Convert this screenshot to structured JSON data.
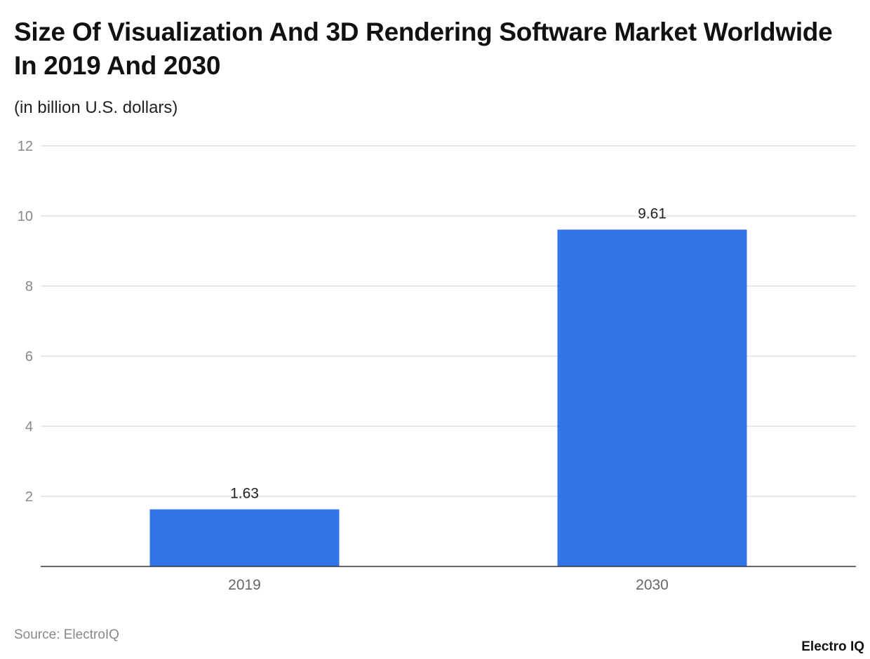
{
  "title": "Size Of Visualization And 3D Rendering Software Market Worldwide In 2019 And 2030",
  "subtitle": "(in billion U.S. dollars)",
  "source": "Source: ElectroIQ",
  "logo": "Electro IQ",
  "chart_data": {
    "type": "bar",
    "categories": [
      "2019",
      "2030"
    ],
    "values": [
      1.63,
      9.61
    ],
    "data_labels": [
      "1.63",
      "9.61"
    ],
    "ylim": [
      0,
      12
    ],
    "yticks": [
      2,
      4,
      6,
      8,
      10,
      12
    ],
    "grid": true,
    "bar_color": "#3375e8"
  }
}
